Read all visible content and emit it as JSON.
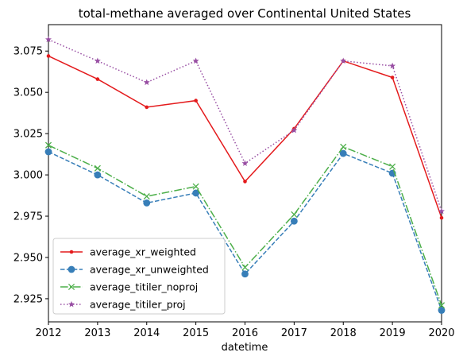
{
  "chart_data": {
    "type": "line",
    "title": "total-methane averaged over Continental United States",
    "xlabel": "datetime",
    "ylabel": "",
    "x": [
      "2012",
      "2013",
      "2014",
      "2015",
      "2016",
      "2017",
      "2018",
      "2019",
      "2020"
    ],
    "xlim": [
      2012,
      2020
    ],
    "ylim": [
      2.911,
      3.091
    ],
    "yticks": [
      2.925,
      2.95,
      2.975,
      3.0,
      3.025,
      3.05,
      3.075
    ],
    "ytick_labels": [
      "2.925",
      "2.950",
      "2.975",
      "3.000",
      "3.025",
      "3.050",
      "3.075"
    ],
    "grid": false,
    "legend_position": "lower left",
    "series": [
      {
        "name": "average_xr_weighted",
        "color": "#e41a1c",
        "linestyle": "solid",
        "marker": "point",
        "values": [
          3.072,
          3.058,
          3.041,
          3.045,
          2.996,
          3.028,
          3.069,
          3.059,
          2.974
        ]
      },
      {
        "name": "average_xr_unweighted",
        "color": "#377eb8",
        "linestyle": "dashed",
        "marker": "circle",
        "values": [
          3.014,
          3.0,
          2.983,
          2.989,
          2.94,
          2.972,
          3.013,
          3.001,
          2.918
        ]
      },
      {
        "name": "average_titiler_noproj",
        "color": "#4daf4a",
        "linestyle": "dashdot",
        "marker": "x",
        "values": [
          3.018,
          3.004,
          2.987,
          2.993,
          2.944,
          2.976,
          3.017,
          3.005,
          2.921
        ]
      },
      {
        "name": "average_titiler_proj",
        "color": "#984ea3",
        "linestyle": "dotted",
        "marker": "star",
        "values": [
          3.082,
          3.069,
          3.056,
          3.069,
          3.007,
          3.027,
          3.069,
          3.066,
          2.978
        ]
      }
    ]
  }
}
